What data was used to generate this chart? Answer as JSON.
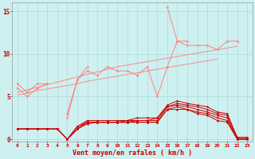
{
  "x": [
    0,
    1,
    2,
    3,
    4,
    5,
    6,
    7,
    8,
    9,
    10,
    11,
    12,
    13,
    14,
    15,
    16,
    17,
    18,
    19,
    20,
    21,
    22,
    23
  ],
  "background_color": "#cef0f0",
  "grid_color": "#aadddd",
  "xlabel": "Vent moyen/en rafales ( km/h )",
  "xlabel_color": "#cc0000",
  "tick_color": "#cc0000",
  "ylim": [
    -0.3,
    16
  ],
  "yticks": [
    0,
    5,
    10,
    15
  ],
  "line_light_color": "#ff8080",
  "line_dark_color": "#cc0000",
  "series": {
    "rafale_high": [
      6.5,
      5.5,
      6.5,
      6.5,
      null,
      2.5,
      7.0,
      8.5,
      null,
      null,
      null,
      null,
      null,
      null,
      null,
      15.5,
      11.5,
      11.5,
      null,
      null,
      null,
      null,
      11.5,
      null
    ],
    "rafale_mid1": [
      6.0,
      5.0,
      6.0,
      6.5,
      null,
      3.0,
      7.0,
      8.0,
      7.5,
      8.5,
      8.0,
      8.0,
      7.5,
      8.5,
      5.0,
      8.5,
      11.5,
      11.0,
      11.0,
      11.0,
      10.5,
      11.5,
      11.5,
      null
    ],
    "trend_a": [
      5.5,
      5.8,
      6.1,
      6.4,
      6.7,
      7.0,
      7.3,
      7.6,
      7.9,
      8.2,
      8.5,
      8.7,
      8.9,
      9.1,
      9.3,
      9.5,
      9.7,
      9.9,
      10.1,
      10.3,
      10.5,
      10.7,
      10.9,
      null
    ],
    "trend_b": [
      5.2,
      5.4,
      5.7,
      5.9,
      6.1,
      6.3,
      6.5,
      6.8,
      7.0,
      7.2,
      7.4,
      7.6,
      7.8,
      8.0,
      8.2,
      8.4,
      8.6,
      8.8,
      9.0,
      9.2,
      9.4,
      null,
      null,
      null
    ],
    "dark_a": [
      1.2,
      1.2,
      1.2,
      1.2,
      1.2,
      0.0,
      1.5,
      2.2,
      2.2,
      2.2,
      2.2,
      2.2,
      2.5,
      2.5,
      2.5,
      4.0,
      4.5,
      4.2,
      4.0,
      3.8,
      3.2,
      3.0,
      0.2,
      0.2
    ],
    "dark_b": [
      1.2,
      1.2,
      1.2,
      1.2,
      1.2,
      0.0,
      1.5,
      2.0,
      2.0,
      2.0,
      2.0,
      2.2,
      2.2,
      2.2,
      2.5,
      3.8,
      4.2,
      4.0,
      3.8,
      3.5,
      3.0,
      2.8,
      0.2,
      0.2
    ],
    "dark_c": [
      1.2,
      1.2,
      1.2,
      1.2,
      1.2,
      0.0,
      1.2,
      2.0,
      2.0,
      2.0,
      2.0,
      2.0,
      2.2,
      2.2,
      2.2,
      3.8,
      4.0,
      3.8,
      3.5,
      3.2,
      2.8,
      2.5,
      0.0,
      0.0
    ],
    "dark_d": [
      1.2,
      1.2,
      1.2,
      1.2,
      1.2,
      0.0,
      1.2,
      2.0,
      2.0,
      2.0,
      2.0,
      2.0,
      2.0,
      2.0,
      2.0,
      3.5,
      3.8,
      3.5,
      3.2,
      3.0,
      2.5,
      2.2,
      0.0,
      0.0
    ],
    "dark_e": [
      1.2,
      1.2,
      1.2,
      1.2,
      1.2,
      0.0,
      1.2,
      1.8,
      2.0,
      2.0,
      2.0,
      2.0,
      2.0,
      2.0,
      2.0,
      3.5,
      3.5,
      3.5,
      3.0,
      2.8,
      2.2,
      2.0,
      0.0,
      0.0
    ]
  }
}
